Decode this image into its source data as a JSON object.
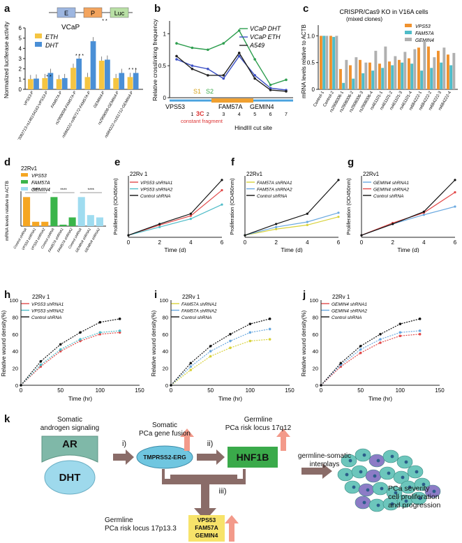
{
  "panels": {
    "a": {
      "label": "a",
      "construct": [
        "E",
        "P",
        "Luc"
      ],
      "title": "VCaP",
      "legend": [
        "ETH",
        "DHT"
      ],
      "ylabel": "Normalized luciferase activity",
      "yticks": [
        "0",
        "1",
        "2",
        "3",
        "4",
        "5",
        "6"
      ],
      "categories": [
        "VPS53-P",
        "rs62082713-rs146154163-VPS53-P",
        "FAM57A-P",
        "rs2908008-FAM57A-P",
        "rs684222-rs967172-FAM57A-P",
        "GEMIN4-P",
        "rs2908008-GEMIN4-P",
        "rs684222-rs161712-GEMIN4-P"
      ],
      "stars": [
        "* *",
        "* * *",
        "* *",
        "* * *"
      ]
    },
    "b": {
      "label": "b",
      "ylabel": "Relative crosslinking frequency",
      "yticks": [
        "0",
        "0.5",
        "1"
      ],
      "legend": [
        "VCaP DHT",
        "VCaP ETH",
        "A549"
      ],
      "genes": [
        "VPS53",
        "FAM57A",
        "GEMIN4"
      ],
      "sites": [
        "S1",
        "S2"
      ],
      "anchor": "3C",
      "anchor_sub": "constant fragment",
      "xticks": [
        "1",
        "2",
        "3",
        "4",
        "5",
        "6",
        "7"
      ],
      "xlabel": "HindIII cut site"
    },
    "c": {
      "label": "c",
      "title": "CRISPR/Cas9 KO in V16A cells",
      "subtitle": "(mixed clones)",
      "legend": [
        "VPS53",
        "FAM57A",
        "GEMIN4"
      ],
      "ylabel": "mRNA levels relative to ACTB",
      "yticks": [
        "0",
        "0.5",
        "1.0"
      ],
      "categories": [
        "Control-1",
        "Control-2",
        "rs2908006-1",
        "rs2908006-2",
        "rs2908006-3",
        "rs2908006-4",
        "rs461101-1",
        "rs461101-2",
        "rs461101-3",
        "rs461101-4",
        "rs684222-1",
        "rs684222-2",
        "rs684222-3",
        "rs684222-4"
      ]
    },
    "d": {
      "label": "d",
      "cell": "22Rv1",
      "legend": [
        "VPS53",
        "FAM57A",
        "GEMIN4"
      ],
      "ylabel": "mRNA levels relative to ACTB",
      "stars": [
        "****",
        "****",
        "****"
      ],
      "categories": [
        "Control shRNA",
        "VPS53 shRNA1",
        "VPS53 shRNA2",
        "Control shRNA",
        "FAM57A shRNA1",
        "FAM57A shRNA2",
        "Control shRNA",
        "GEMIN4 shRNA1",
        "GEMIN4 shRNA2"
      ]
    },
    "e": {
      "label": "e",
      "cell": "22Rv 1",
      "legend": [
        "VPS53 shRNA1",
        "VPS53 shRNA2",
        "Control shRNA"
      ],
      "ylabel": "Proliferation (OD450nm)",
      "xlabel": "Time (d)",
      "xticks": [
        "0",
        "2",
        "4",
        "6"
      ]
    },
    "f": {
      "label": "f",
      "cell": "22Rv1",
      "legend": [
        "FAM57A shRNA1",
        "FAM57A shRNA2",
        "Control shRNA"
      ],
      "ylabel": "Proliferation (OD450nm)",
      "xlabel": "Time (d)",
      "xticks": [
        "0",
        "2",
        "4",
        "6"
      ]
    },
    "g": {
      "label": "g",
      "cell": "22Rv1",
      "legend": [
        "GEMIN4 shRNA1",
        "GEMIN4 shRNA2",
        "Control shRNA"
      ],
      "ylabel": "Proliferation (OD450nm)",
      "xlabel": "Time (d)",
      "xticks": [
        "0",
        "2",
        "4",
        "6"
      ]
    },
    "h": {
      "label": "h",
      "cell": "22Rv 1",
      "legend": [
        "VPS53 shRNA1",
        "VPS53 shRNA2",
        "Control shRNA"
      ],
      "ylabel": "Relative wound density(%)",
      "xlabel": "Time (hr)",
      "xticks": [
        "0",
        "50",
        "100",
        "150"
      ],
      "yticks": [
        "0",
        "20",
        "40",
        "60",
        "80",
        "100"
      ]
    },
    "i": {
      "label": "i",
      "cell": "22Rv 1",
      "legend": [
        "FAM57A shRNA1",
        "FAM57A shRNA2",
        "Control shRNA"
      ],
      "ylabel": "Relative wound density(%)",
      "xlabel": "Time (hr)",
      "xticks": [
        "0",
        "50",
        "100",
        "150"
      ],
      "yticks": [
        "0",
        "20",
        "40",
        "60",
        "80",
        "100"
      ]
    },
    "j": {
      "label": "j",
      "cell": "22Rv 1",
      "legend": [
        "GEMIN4 shRNA1",
        "GEMIN4 shRNA2",
        "Control shRNA"
      ],
      "ylabel": "Relative wound density(%)",
      "xlabel": "Time (hr)",
      "xticks": [
        "0",
        "50",
        "100",
        "150"
      ],
      "yticks": [
        "0",
        "20",
        "40",
        "60",
        "80",
        "100"
      ]
    },
    "k": {
      "label": "k",
      "somatic_signal_line1": "Somatic",
      "somatic_signal_line2": "androgen signaling",
      "ar": "AR",
      "dht": "DHT",
      "fusion_line1": "Somatic",
      "fusion_line2": "PCa gene fusion",
      "fusion": "TMPRSS2-ERG",
      "germline_17q_line1": "Germline",
      "germline_17q_line2": "PCa risk locus 17q12",
      "hnf1b": "HNF1B",
      "interplay_line1": "germline-somatic",
      "interplay_line2": "interplays",
      "outcome_line1": "PCa severity",
      "outcome_line2": "cell proliferation",
      "outcome_line3": "and progression",
      "step_i": "i)",
      "step_ii": "ii)",
      "step_iii": "iii)",
      "germline_17p_line1": "Germline",
      "germline_17p_line2": "PCa risk locus 17p13.3",
      "genes": [
        "VPS53",
        "FAM57A",
        "GEMIN4"
      ]
    }
  },
  "colors": {
    "eth": "#f5c542",
    "dht": "#4a8fd6",
    "vcap_dht": "#2e9e4f",
    "vcap_eth": "#3b4fc4",
    "a549": "#222222",
    "vps53": "#f0922e",
    "fam57a": "#4fbcc8",
    "gemin4": "#b0b0b0",
    "d_vps53": "#f5a623",
    "d_fam57a": "#3ab54a",
    "d_gemin4": "#9fdcf0",
    "sh1_red": "#e24a4a",
    "sh2_blue": "#6aa9e0",
    "sh1_yellow": "#d8d23a",
    "ctrl": "#111111",
    "hnf1b": "#3aaa4a",
    "ar_box": "#7fb8a8",
    "dht_oval": "#9ed9ec",
    "fusion_oval": "#6fc6e0",
    "gene_box": "#f7e36a",
    "arrow": "#8a6c68",
    "arrow_pink": "#f39a8a"
  },
  "chart_data": [
    {
      "panel": "a",
      "type": "bar",
      "categories": [
        "VPS53-P",
        "rs62082713-rs146154163-VPS53-P",
        "FAM57A-P",
        "rs2908008-FAM57A-P",
        "rs684222-rs967172-FAM57A-P",
        "GEMIN4-P",
        "rs2908008-GEMIN4-P",
        "rs684222-rs161712-GEMIN4-P"
      ],
      "series": [
        {
          "name": "ETH",
          "values": [
            1.0,
            1.1,
            1.0,
            2.1,
            1.2,
            2.8,
            1.1,
            1.2
          ]
        },
        {
          "name": "DHT",
          "values": [
            1.05,
            1.6,
            1.1,
            3.0,
            4.7,
            2.9,
            1.6,
            1.6
          ]
        }
      ],
      "ylim": [
        0,
        6
      ]
    },
    {
      "panel": "b",
      "type": "line",
      "x": [
        0,
        1,
        2,
        3,
        4,
        5,
        6,
        7
      ],
      "series": [
        {
          "name": "VCaP DHT",
          "values": [
            0.85,
            0.78,
            0.75,
            0.85,
            1.05,
            0.6,
            0.2,
            0.28
          ]
        },
        {
          "name": "VCaP ETH",
          "values": [
            0.6,
            0.5,
            0.45,
            0.3,
            0.65,
            0.35,
            0.15,
            0.12
          ]
        },
        {
          "name": "A549",
          "values": [
            0.65,
            0.45,
            0.35,
            0.35,
            0.7,
            0.3,
            0.12,
            0.1
          ]
        }
      ],
      "ylim": [
        0,
        1.2
      ]
    },
    {
      "panel": "c",
      "type": "bar",
      "categories": [
        "Control-1",
        "Control-2",
        "rs2908006-1",
        "rs2908006-2",
        "rs2908006-3",
        "rs2908006-4",
        "rs461101-1",
        "rs461101-2",
        "rs461101-3",
        "rs461101-4",
        "rs684222-1",
        "rs684222-2",
        "rs684222-3",
        "rs684222-4"
      ],
      "series": [
        {
          "name": "VPS53",
          "values": [
            1.0,
            1.0,
            0.38,
            0.45,
            0.55,
            0.5,
            0.48,
            0.52,
            0.55,
            0.58,
            0.78,
            0.8,
            0.72,
            0.65
          ]
        },
        {
          "name": "FAM57A",
          "values": [
            1.0,
            0.98,
            0.12,
            0.2,
            0.3,
            0.35,
            0.4,
            0.45,
            0.5,
            0.48,
            0.35,
            0.4,
            0.5,
            0.45
          ]
        },
        {
          "name": "GEMIN4",
          "values": [
            1.0,
            1.0,
            0.55,
            0.6,
            0.5,
            0.72,
            0.8,
            0.62,
            0.7,
            0.75,
            0.9,
            0.6,
            0.78,
            0.68
          ]
        }
      ],
      "ylim": [
        0,
        1.2
      ]
    },
    {
      "panel": "d",
      "type": "bar",
      "categories": [
        "Control shRNA",
        "VPS53 shRNA1",
        "VPS53 shRNA2",
        "Control shRNA",
        "FAM57A shRNA1",
        "FAM57A shRNA2",
        "Control shRNA",
        "GEMIN4 shRNA1",
        "GEMIN4 shRNA2"
      ],
      "values": [
        1.0,
        0.15,
        0.15,
        1.0,
        0.05,
        0.3,
        1.0,
        0.38,
        0.3
      ],
      "ylim": [
        0,
        1.2
      ]
    },
    {
      "panel": "e",
      "type": "line",
      "x": [
        0,
        2,
        4,
        6
      ],
      "series": [
        {
          "name": "VPS53 shRNA1",
          "values": [
            0.02,
            0.12,
            0.21,
            0.46
          ]
        },
        {
          "name": "VPS53 shRNA2",
          "values": [
            0.02,
            0.1,
            0.18,
            0.32
          ]
        },
        {
          "name": "Control shRNA",
          "values": [
            0.02,
            0.13,
            0.23,
            0.56
          ]
        }
      ],
      "ylim": [
        0,
        0.6
      ]
    },
    {
      "panel": "f",
      "type": "line",
      "x": [
        0,
        2,
        4,
        6
      ],
      "series": [
        {
          "name": "FAM57A shRNA1",
          "values": [
            0.02,
            0.08,
            0.12,
            0.2
          ]
        },
        {
          "name": "FAM57A shRNA2",
          "values": [
            0.02,
            0.1,
            0.15,
            0.24
          ]
        },
        {
          "name": "Control shRNA",
          "values": [
            0.02,
            0.13,
            0.23,
            0.56
          ]
        }
      ],
      "ylim": [
        0,
        0.6
      ]
    },
    {
      "panel": "g",
      "type": "line",
      "x": [
        0,
        2,
        4,
        6
      ],
      "series": [
        {
          "name": "GEMIN4 shRNA1",
          "values": [
            0.02,
            0.13,
            0.22,
            0.3
          ]
        },
        {
          "name": "GEMIN4 shRNA2",
          "values": [
            0.02,
            0.14,
            0.24,
            0.44
          ]
        },
        {
          "name": "Control shRNA",
          "values": [
            0.02,
            0.13,
            0.25,
            0.56
          ]
        }
      ],
      "ylim": [
        0,
        0.6
      ]
    },
    {
      "panel": "h",
      "type": "line",
      "x": [
        0,
        25,
        50,
        75,
        100,
        125
      ],
      "series": [
        {
          "name": "VPS53 shRNA1",
          "values": [
            0,
            22,
            40,
            52,
            60,
            62
          ]
        },
        {
          "name": "VPS53 shRNA2",
          "values": [
            0,
            24,
            42,
            54,
            62,
            64
          ]
        },
        {
          "name": "Control shRNA",
          "values": [
            0,
            28,
            48,
            62,
            74,
            78
          ]
        }
      ],
      "ylim": [
        0,
        100
      ],
      "xlim": [
        0,
        150
      ]
    },
    {
      "panel": "i",
      "type": "line",
      "x": [
        0,
        25,
        50,
        75,
        100,
        125
      ],
      "series": [
        {
          "name": "FAM57A shRNA1",
          "values": [
            0,
            18,
            34,
            44,
            52,
            54
          ]
        },
        {
          "name": "FAM57A shRNA2",
          "values": [
            0,
            22,
            40,
            52,
            62,
            66
          ]
        },
        {
          "name": "Control shRNA",
          "values": [
            0,
            26,
            46,
            60,
            72,
            78
          ]
        }
      ],
      "ylim": [
        0,
        100
      ],
      "xlim": [
        0,
        150
      ]
    },
    {
      "panel": "j",
      "type": "line",
      "x": [
        0,
        25,
        50,
        75,
        100,
        125
      ],
      "series": [
        {
          "name": "GEMIN4 shRNA1",
          "values": [
            0,
            22,
            38,
            50,
            58,
            60
          ]
        },
        {
          "name": "GEMIN4 shRNA2",
          "values": [
            0,
            24,
            42,
            54,
            62,
            64
          ]
        },
        {
          "name": "Control shRNA",
          "values": [
            0,
            26,
            46,
            60,
            72,
            78
          ]
        }
      ],
      "ylim": [
        0,
        100
      ],
      "xlim": [
        0,
        150
      ]
    }
  ]
}
